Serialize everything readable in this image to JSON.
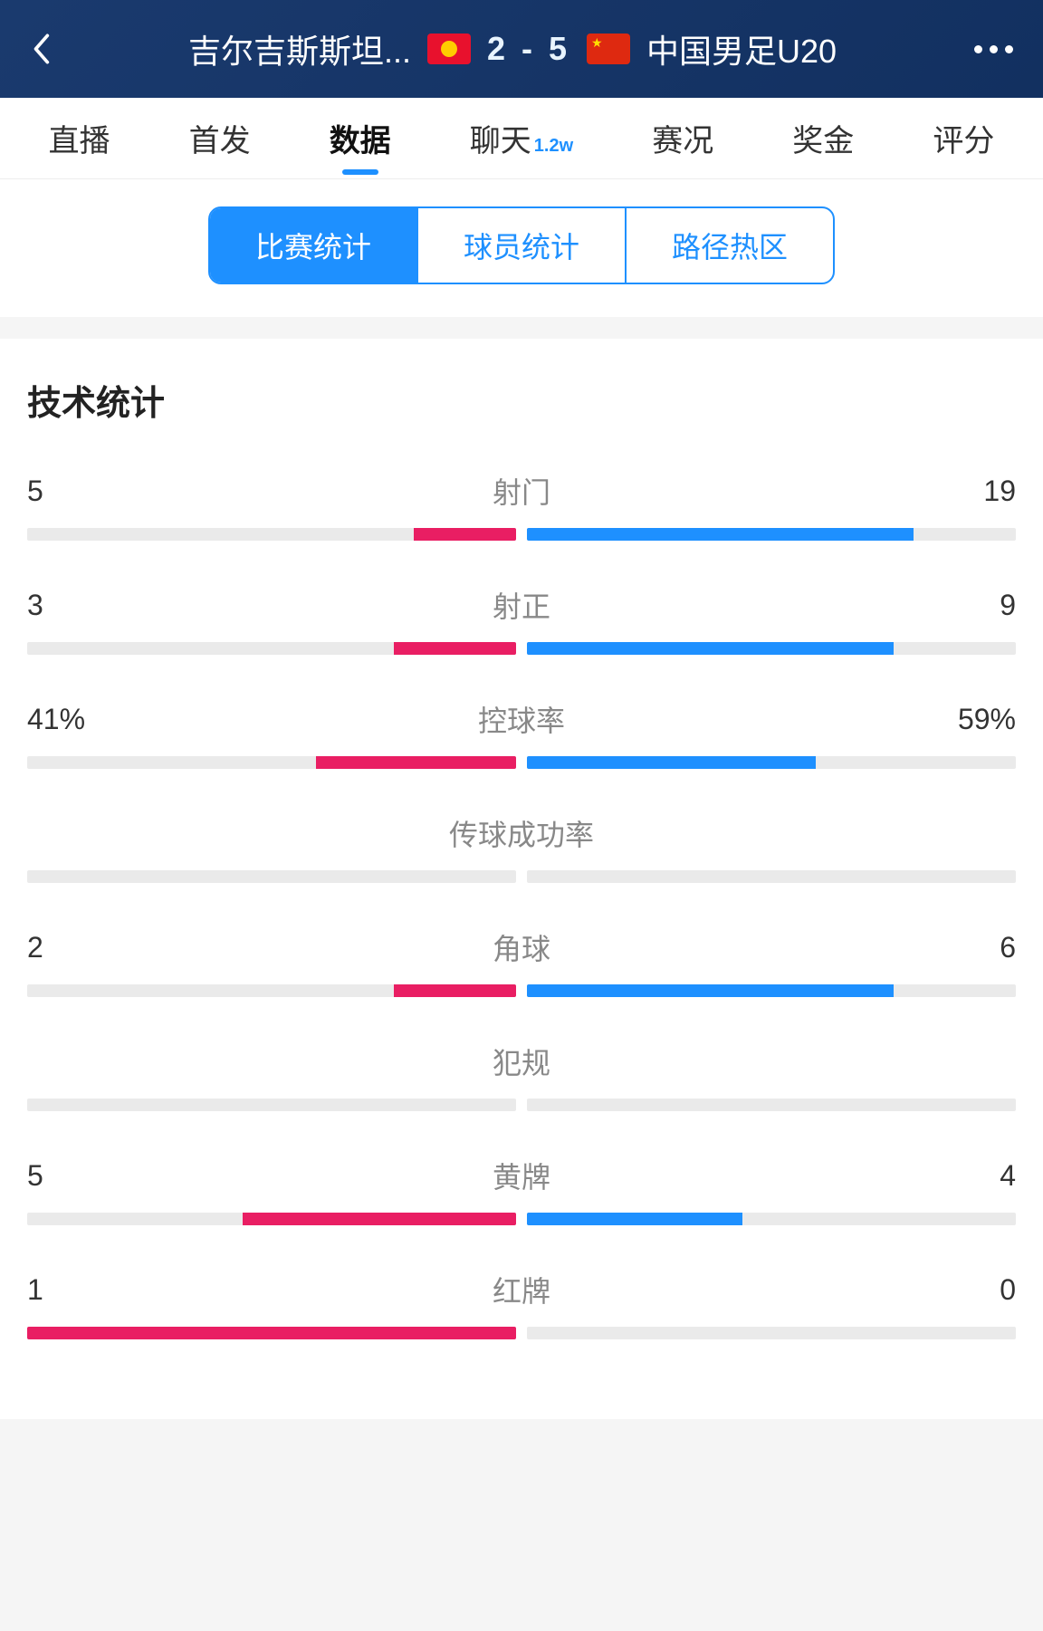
{
  "header": {
    "team_left": "吉尔吉斯斯坦...",
    "team_right": "中国男足U20",
    "score": "2 - 5"
  },
  "tabs": {
    "items": [
      {
        "label": "直播",
        "badge": ""
      },
      {
        "label": "首发",
        "badge": ""
      },
      {
        "label": "数据",
        "badge": ""
      },
      {
        "label": "聊天",
        "badge": "1.2w"
      },
      {
        "label": "赛况",
        "badge": ""
      },
      {
        "label": "奖金",
        "badge": ""
      },
      {
        "label": "评分",
        "badge": ""
      }
    ],
    "active_index": 2
  },
  "segment": {
    "items": [
      "比赛统计",
      "球员统计",
      "路径热区"
    ],
    "active_index": 0
  },
  "stats": {
    "title": "技术统计",
    "colors": {
      "left_bar": "#e91e63",
      "right_bar": "#1e90ff",
      "bar_bg": "#eaeaea"
    },
    "rows": [
      {
        "name": "射门",
        "left": "5",
        "right": "19",
        "left_pct": 21,
        "right_pct": 79
      },
      {
        "name": "射正",
        "left": "3",
        "right": "9",
        "left_pct": 25,
        "right_pct": 75
      },
      {
        "name": "控球率",
        "left": "41%",
        "right": "59%",
        "left_pct": 41,
        "right_pct": 59
      },
      {
        "name": "传球成功率",
        "left": "",
        "right": "",
        "left_pct": 0,
        "right_pct": 0
      },
      {
        "name": "角球",
        "left": "2",
        "right": "6",
        "left_pct": 25,
        "right_pct": 75
      },
      {
        "name": "犯规",
        "left": "",
        "right": "",
        "left_pct": 0,
        "right_pct": 0
      },
      {
        "name": "黄牌",
        "left": "5",
        "right": "4",
        "left_pct": 56,
        "right_pct": 44
      },
      {
        "name": "红牌",
        "left": "1",
        "right": "0",
        "left_pct": 100,
        "right_pct": 0
      }
    ]
  }
}
